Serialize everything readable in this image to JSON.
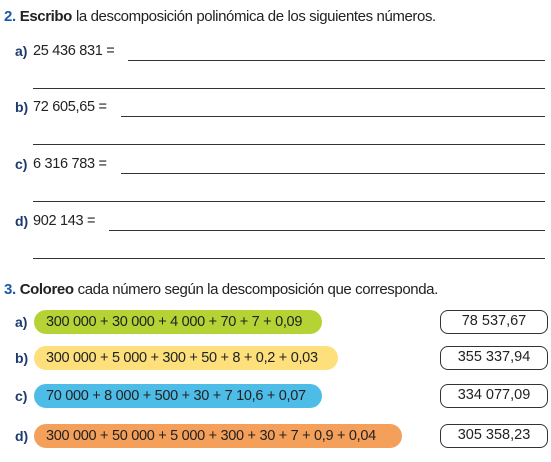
{
  "exercise_2": {
    "number": "2.",
    "verb": "Escribo",
    "instruction": "la descomposición polinómica de los siguientes números.",
    "items": [
      {
        "letter": "a)",
        "text": "25 436 831 ="
      },
      {
        "letter": "b)",
        "text": "72 605,65 ="
      },
      {
        "letter": "c)",
        "text": "6 316 783 ="
      },
      {
        "letter": "d)",
        "text": "902 143 ="
      }
    ]
  },
  "exercise_3": {
    "number": "3.",
    "verb": "Coloreo",
    "instruction": "cada número según la descomposición que corresponda.",
    "items": [
      {
        "letter": "a)",
        "expression": "300 000 + 30 000 + 4 000 + 70 + 7 + 0,09",
        "answer": "78 537,67"
      },
      {
        "letter": "b)",
        "expression": "300 000 + 5 000 + 300 + 50 + 8 + 0,2 + 0,03",
        "answer": "355 337,94"
      },
      {
        "letter": "c)",
        "expression": "70 000 + 8 000 + 500 + 30 + 7 10,6 + 0,07",
        "answer": "334 077,09"
      },
      {
        "letter": "d)",
        "expression": "300 000 + 50 000 + 5 000 + 300 + 30 + 7 + 0,9 + 0,04",
        "answer": "305 358,23"
      }
    ]
  }
}
